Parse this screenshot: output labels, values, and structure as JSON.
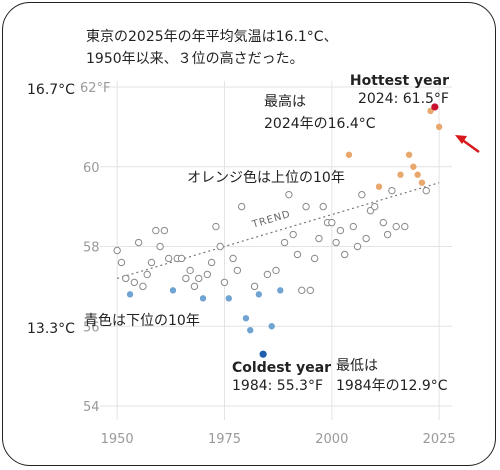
{
  "chart_data": {
    "type": "scatter",
    "title_lines": [
      "東京の2025年の年平均気温は16.1°C、",
      "1950年以来、３位の高さだった。"
    ],
    "xlim": [
      1946,
      2028
    ],
    "ylim": [
      54,
      62
    ],
    "x_ticks": [
      1950,
      1975,
      2000,
      2025
    ],
    "y_ticks": [
      {
        "v": 54,
        "label": "54"
      },
      {
        "v": 56,
        "label": "56"
      },
      {
        "v": 58,
        "label": "58"
      },
      {
        "v": 60,
        "label": "60"
      },
      {
        "v": 62,
        "label": "62°F"
      }
    ],
    "celsius_labels": [
      {
        "v": 61.95,
        "label": "16.7°C"
      },
      {
        "v": 55.95,
        "label": "13.3°C"
      }
    ],
    "trend_label": "TREND",
    "trend": {
      "x": [
        1950,
        2025
      ],
      "y": [
        57.2,
        59.6
      ]
    },
    "colors": {
      "top10": "#e8a86d",
      "bottom10": "#6fa3d2",
      "hottest": "#c8102e",
      "coldest": "#1f5fad",
      "grey": "#8a8a8a",
      "arrow": "#d7191c",
      "trend": "#777777"
    },
    "annotations": {
      "hottest_title": "Hottest year",
      "hottest_value": "2024: 61.5°F",
      "saikou_1": "最高は",
      "saikou_2": "2024年の16.4°C",
      "orange_note": "オレンジ色は上位の10年",
      "blue_note": "青色は下位の10年",
      "coldest_title": "Coldest year",
      "coldest_value": "1984: 55.3°F",
      "saitei_1": "最低は",
      "saitei_2": "1984年の12.9°C"
    },
    "points": [
      {
        "x": 1950,
        "y": 57.9,
        "c": "grey"
      },
      {
        "x": 1951,
        "y": 57.6,
        "c": "grey"
      },
      {
        "x": 1952,
        "y": 57.2,
        "c": "grey"
      },
      {
        "x": 1953,
        "y": 56.8,
        "c": "blue"
      },
      {
        "x": 1954,
        "y": 57.1,
        "c": "grey"
      },
      {
        "x": 1955,
        "y": 58.1,
        "c": "grey"
      },
      {
        "x": 1956,
        "y": 57.0,
        "c": "grey"
      },
      {
        "x": 1957,
        "y": 57.3,
        "c": "grey"
      },
      {
        "x": 1958,
        "y": 57.6,
        "c": "grey"
      },
      {
        "x": 1959,
        "y": 58.4,
        "c": "grey"
      },
      {
        "x": 1960,
        "y": 58.0,
        "c": "grey"
      },
      {
        "x": 1961,
        "y": 58.4,
        "c": "grey"
      },
      {
        "x": 1962,
        "y": 57.7,
        "c": "grey"
      },
      {
        "x": 1963,
        "y": 56.9,
        "c": "blue"
      },
      {
        "x": 1964,
        "y": 57.7,
        "c": "grey"
      },
      {
        "x": 1965,
        "y": 57.7,
        "c": "grey"
      },
      {
        "x": 1966,
        "y": 57.2,
        "c": "grey"
      },
      {
        "x": 1967,
        "y": 57.4,
        "c": "grey"
      },
      {
        "x": 1968,
        "y": 57.0,
        "c": "grey"
      },
      {
        "x": 1969,
        "y": 57.2,
        "c": "grey"
      },
      {
        "x": 1970,
        "y": 56.7,
        "c": "blue"
      },
      {
        "x": 1971,
        "y": 57.3,
        "c": "grey"
      },
      {
        "x": 1972,
        "y": 57.6,
        "c": "grey"
      },
      {
        "x": 1973,
        "y": 58.5,
        "c": "grey"
      },
      {
        "x": 1974,
        "y": 58.0,
        "c": "grey"
      },
      {
        "x": 1975,
        "y": 57.1,
        "c": "grey"
      },
      {
        "x": 1976,
        "y": 56.7,
        "c": "blue"
      },
      {
        "x": 1977,
        "y": 57.7,
        "c": "grey"
      },
      {
        "x": 1978,
        "y": 57.4,
        "c": "grey"
      },
      {
        "x": 1979,
        "y": 59.0,
        "c": "grey"
      },
      {
        "x": 1980,
        "y": 56.2,
        "c": "blue"
      },
      {
        "x": 1981,
        "y": 55.9,
        "c": "blue"
      },
      {
        "x": 1982,
        "y": 57.0,
        "c": "grey"
      },
      {
        "x": 1983,
        "y": 56.8,
        "c": "blue"
      },
      {
        "x": 1984,
        "y": 55.3,
        "c": "coldest"
      },
      {
        "x": 1985,
        "y": 57.3,
        "c": "grey"
      },
      {
        "x": 1986,
        "y": 56.0,
        "c": "blue"
      },
      {
        "x": 1987,
        "y": 57.4,
        "c": "grey"
      },
      {
        "x": 1988,
        "y": 56.9,
        "c": "blue"
      },
      {
        "x": 1989,
        "y": 58.1,
        "c": "grey"
      },
      {
        "x": 1990,
        "y": 59.3,
        "c": "grey"
      },
      {
        "x": 1991,
        "y": 58.3,
        "c": "grey"
      },
      {
        "x": 1992,
        "y": 57.8,
        "c": "grey"
      },
      {
        "x": 1993,
        "y": 56.9,
        "c": "grey"
      },
      {
        "x": 1994,
        "y": 59.0,
        "c": "grey"
      },
      {
        "x": 1995,
        "y": 56.9,
        "c": "grey"
      },
      {
        "x": 1996,
        "y": 57.7,
        "c": "grey"
      },
      {
        "x": 1997,
        "y": 58.2,
        "c": "grey"
      },
      {
        "x": 1998,
        "y": 59.0,
        "c": "grey"
      },
      {
        "x": 1999,
        "y": 58.6,
        "c": "grey"
      },
      {
        "x": 2000,
        "y": 58.6,
        "c": "grey"
      },
      {
        "x": 2001,
        "y": 58.1,
        "c": "grey"
      },
      {
        "x": 2002,
        "y": 58.4,
        "c": "grey"
      },
      {
        "x": 2003,
        "y": 57.8,
        "c": "grey"
      },
      {
        "x": 2004,
        "y": 60.3,
        "c": "orange"
      },
      {
        "x": 2005,
        "y": 58.5,
        "c": "grey"
      },
      {
        "x": 2006,
        "y": 58.0,
        "c": "grey"
      },
      {
        "x": 2007,
        "y": 59.3,
        "c": "grey"
      },
      {
        "x": 2008,
        "y": 58.2,
        "c": "grey"
      },
      {
        "x": 2009,
        "y": 58.9,
        "c": "grey"
      },
      {
        "x": 2010,
        "y": 59.0,
        "c": "grey"
      },
      {
        "x": 2011,
        "y": 59.5,
        "c": "orange"
      },
      {
        "x": 2012,
        "y": 58.6,
        "c": "grey"
      },
      {
        "x": 2013,
        "y": 58.3,
        "c": "grey"
      },
      {
        "x": 2014,
        "y": 59.4,
        "c": "grey"
      },
      {
        "x": 2015,
        "y": 58.5,
        "c": "grey"
      },
      {
        "x": 2016,
        "y": 59.8,
        "c": "orange"
      },
      {
        "x": 2017,
        "y": 58.5,
        "c": "grey"
      },
      {
        "x": 2018,
        "y": 60.3,
        "c": "orange"
      },
      {
        "x": 2019,
        "y": 60.0,
        "c": "orange"
      },
      {
        "x": 2020,
        "y": 59.8,
        "c": "orange"
      },
      {
        "x": 2021,
        "y": 59.6,
        "c": "orange"
      },
      {
        "x": 2022,
        "y": 59.4,
        "c": "grey"
      },
      {
        "x": 2023,
        "y": 61.4,
        "c": "orange"
      },
      {
        "x": 2024,
        "y": 61.5,
        "c": "hottest"
      },
      {
        "x": 2025,
        "y": 61.0,
        "c": "orange"
      }
    ]
  }
}
